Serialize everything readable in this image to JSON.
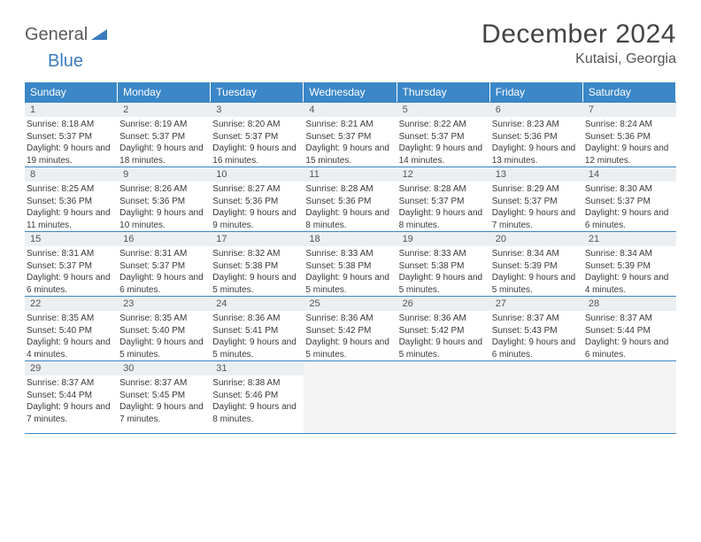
{
  "logo": {
    "text1": "General",
    "text2": "Blue"
  },
  "title": "December 2024",
  "location": "Kutaisi, Georgia",
  "colors": {
    "header_bg": "#3b87c8",
    "header_text": "#ffffff",
    "daynum_bg": "#eceff2",
    "border": "#3b87c8",
    "empty_bg": "#f4f4f4",
    "text": "#3a3a3a"
  },
  "day_headers": [
    "Sunday",
    "Monday",
    "Tuesday",
    "Wednesday",
    "Thursday",
    "Friday",
    "Saturday"
  ],
  "weeks": [
    [
      {
        "n": "1",
        "sr": "8:18 AM",
        "ss": "5:37 PM",
        "dl": "9 hours and 19 minutes."
      },
      {
        "n": "2",
        "sr": "8:19 AM",
        "ss": "5:37 PM",
        "dl": "9 hours and 18 minutes."
      },
      {
        "n": "3",
        "sr": "8:20 AM",
        "ss": "5:37 PM",
        "dl": "9 hours and 16 minutes."
      },
      {
        "n": "4",
        "sr": "8:21 AM",
        "ss": "5:37 PM",
        "dl": "9 hours and 15 minutes."
      },
      {
        "n": "5",
        "sr": "8:22 AM",
        "ss": "5:37 PM",
        "dl": "9 hours and 14 minutes."
      },
      {
        "n": "6",
        "sr": "8:23 AM",
        "ss": "5:36 PM",
        "dl": "9 hours and 13 minutes."
      },
      {
        "n": "7",
        "sr": "8:24 AM",
        "ss": "5:36 PM",
        "dl": "9 hours and 12 minutes."
      }
    ],
    [
      {
        "n": "8",
        "sr": "8:25 AM",
        "ss": "5:36 PM",
        "dl": "9 hours and 11 minutes."
      },
      {
        "n": "9",
        "sr": "8:26 AM",
        "ss": "5:36 PM",
        "dl": "9 hours and 10 minutes."
      },
      {
        "n": "10",
        "sr": "8:27 AM",
        "ss": "5:36 PM",
        "dl": "9 hours and 9 minutes."
      },
      {
        "n": "11",
        "sr": "8:28 AM",
        "ss": "5:36 PM",
        "dl": "9 hours and 8 minutes."
      },
      {
        "n": "12",
        "sr": "8:28 AM",
        "ss": "5:37 PM",
        "dl": "9 hours and 8 minutes."
      },
      {
        "n": "13",
        "sr": "8:29 AM",
        "ss": "5:37 PM",
        "dl": "9 hours and 7 minutes."
      },
      {
        "n": "14",
        "sr": "8:30 AM",
        "ss": "5:37 PM",
        "dl": "9 hours and 6 minutes."
      }
    ],
    [
      {
        "n": "15",
        "sr": "8:31 AM",
        "ss": "5:37 PM",
        "dl": "9 hours and 6 minutes."
      },
      {
        "n": "16",
        "sr": "8:31 AM",
        "ss": "5:37 PM",
        "dl": "9 hours and 6 minutes."
      },
      {
        "n": "17",
        "sr": "8:32 AM",
        "ss": "5:38 PM",
        "dl": "9 hours and 5 minutes."
      },
      {
        "n": "18",
        "sr": "8:33 AM",
        "ss": "5:38 PM",
        "dl": "9 hours and 5 minutes."
      },
      {
        "n": "19",
        "sr": "8:33 AM",
        "ss": "5:38 PM",
        "dl": "9 hours and 5 minutes."
      },
      {
        "n": "20",
        "sr": "8:34 AM",
        "ss": "5:39 PM",
        "dl": "9 hours and 5 minutes."
      },
      {
        "n": "21",
        "sr": "8:34 AM",
        "ss": "5:39 PM",
        "dl": "9 hours and 4 minutes."
      }
    ],
    [
      {
        "n": "22",
        "sr": "8:35 AM",
        "ss": "5:40 PM",
        "dl": "9 hours and 4 minutes."
      },
      {
        "n": "23",
        "sr": "8:35 AM",
        "ss": "5:40 PM",
        "dl": "9 hours and 5 minutes."
      },
      {
        "n": "24",
        "sr": "8:36 AM",
        "ss": "5:41 PM",
        "dl": "9 hours and 5 minutes."
      },
      {
        "n": "25",
        "sr": "8:36 AM",
        "ss": "5:42 PM",
        "dl": "9 hours and 5 minutes."
      },
      {
        "n": "26",
        "sr": "8:36 AM",
        "ss": "5:42 PM",
        "dl": "9 hours and 5 minutes."
      },
      {
        "n": "27",
        "sr": "8:37 AM",
        "ss": "5:43 PM",
        "dl": "9 hours and 6 minutes."
      },
      {
        "n": "28",
        "sr": "8:37 AM",
        "ss": "5:44 PM",
        "dl": "9 hours and 6 minutes."
      }
    ],
    [
      {
        "n": "29",
        "sr": "8:37 AM",
        "ss": "5:44 PM",
        "dl": "9 hours and 7 minutes."
      },
      {
        "n": "30",
        "sr": "8:37 AM",
        "ss": "5:45 PM",
        "dl": "9 hours and 7 minutes."
      },
      {
        "n": "31",
        "sr": "8:38 AM",
        "ss": "5:46 PM",
        "dl": "9 hours and 8 minutes."
      },
      null,
      null,
      null,
      null
    ]
  ],
  "labels": {
    "sunrise": "Sunrise: ",
    "sunset": "Sunset: ",
    "daylight": "Daylight: "
  }
}
